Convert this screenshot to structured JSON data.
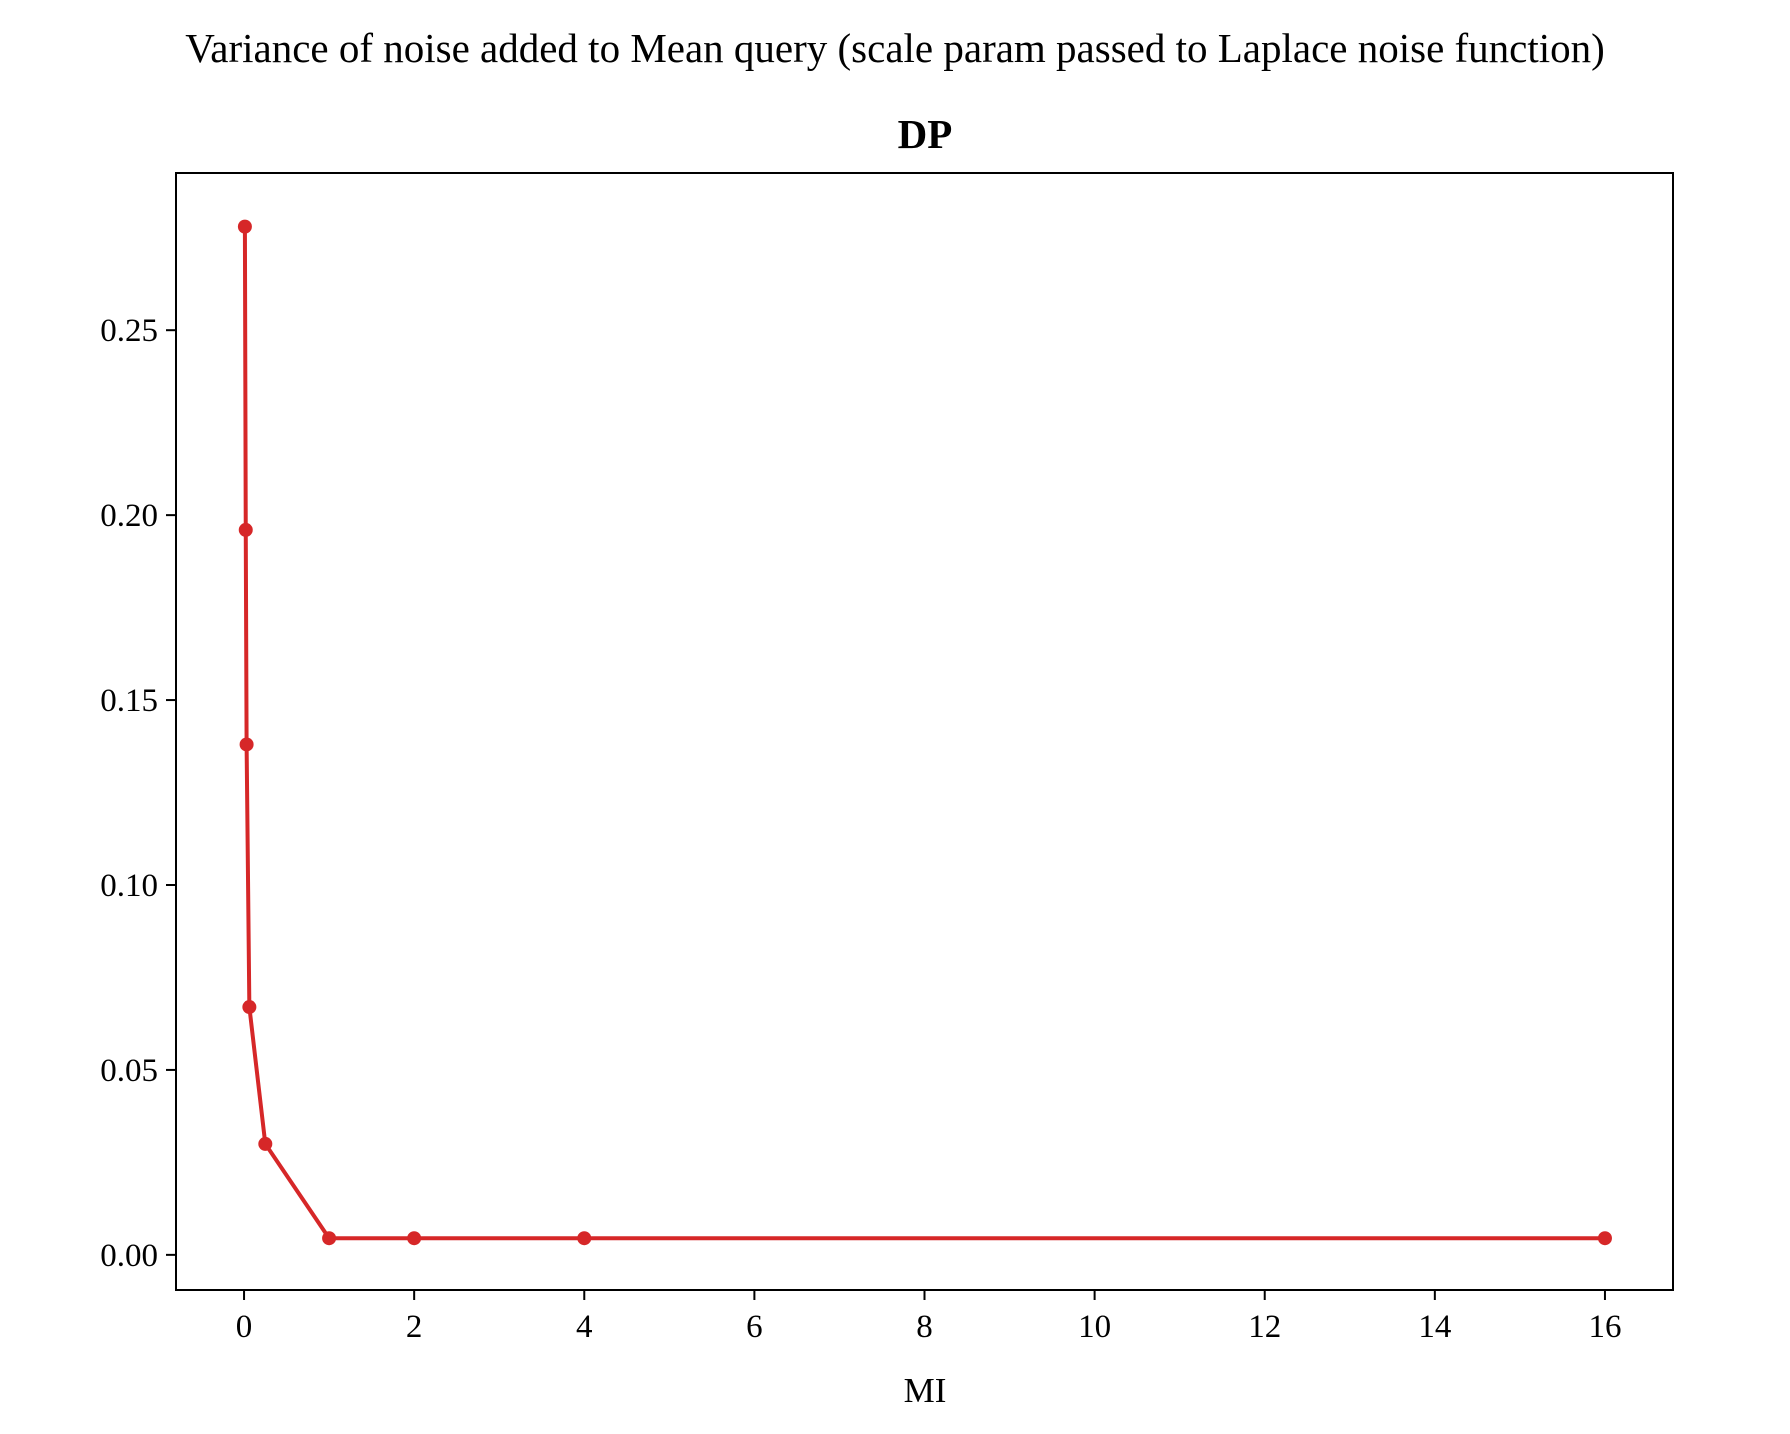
{
  "chart_data": {
    "type": "line",
    "suptitle": "Variance of noise added to Mean query (scale param passed to Laplace noise function)",
    "title": "DP",
    "xlabel": "MI",
    "ylabel": "",
    "xlim": [
      -0.8,
      16.8
    ],
    "ylim": [
      -0.0095,
      0.2925
    ],
    "xticks": [
      0,
      2,
      4,
      6,
      8,
      10,
      12,
      14,
      16
    ],
    "xtick_labels": [
      "0",
      "2",
      "4",
      "6",
      "8",
      "10",
      "12",
      "14",
      "16"
    ],
    "yticks": [
      0.0,
      0.05,
      0.1,
      0.15,
      0.2,
      0.25
    ],
    "ytick_labels": [
      "0.00",
      "0.05",
      "0.10",
      "0.15",
      "0.20",
      "0.25"
    ],
    "grid": false,
    "series": [
      {
        "color": "#d62728",
        "marker": "circle",
        "x": [
          0.01,
          0.02,
          0.03,
          0.0625,
          0.25,
          1,
          2,
          4,
          16
        ],
        "y": [
          0.278,
          0.196,
          0.138,
          0.067,
          0.03,
          0.0045,
          0.0045,
          0.0045,
          0.0045
        ]
      }
    ]
  }
}
